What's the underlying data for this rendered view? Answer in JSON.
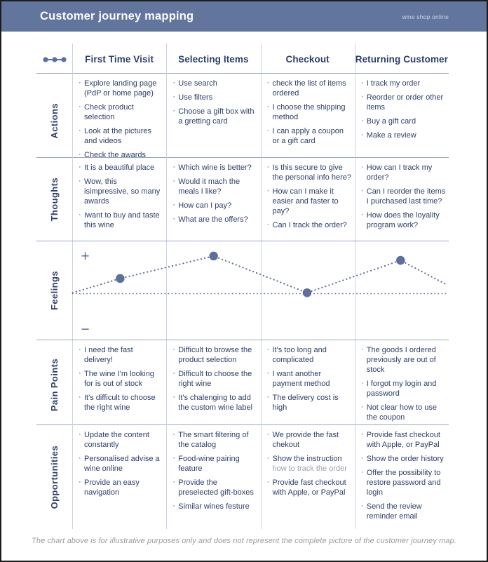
{
  "header": {
    "title": "Customer journey mapping",
    "brand": "wine shop online"
  },
  "icons": {
    "journey_path": "three-dots-connected-by-line"
  },
  "columns": [
    "First Time Visit",
    "Selecting Items",
    "Checkout",
    "Returning Customer"
  ],
  "rows": [
    {
      "label": "Actions",
      "type": "list",
      "cells": [
        [
          "Explore landing page (PdP or home page)",
          "Check product selection",
          "Look at the pictures and videos",
          "Check the awards"
        ],
        [
          "Use search",
          "Use filters",
          "Choose a gift box with a gretting card"
        ],
        [
          "check the list of items ordered",
          "I choose the shipping method",
          "I can apply a coupon or a gift card"
        ],
        [
          "I track my order",
          "Reorder or order other items",
          "Buy a gift card",
          "Make a review"
        ]
      ]
    },
    {
      "label": "Thoughts",
      "type": "list",
      "cells": [
        [
          "It is a beautiful place",
          "Wow, this isimpressive, so many awards",
          "Iwant to buy and taste this wine"
        ],
        [
          "Which wine is better?",
          "Would it mach the meals I like?",
          "How can I pay?",
          "What are the offers?"
        ],
        [
          "Is this secure to give the personal info here?",
          "How can I make it easier and faster to pay?",
          "Can I track the order?"
        ],
        [
          "How can I track my order?",
          "Can I reorder the items I purchased last time?",
          "How does the loyality program work?"
        ]
      ]
    },
    {
      "label": "Feelings",
      "type": "chart"
    },
    {
      "label": "Pain Points",
      "type": "list",
      "cells": [
        [
          "I need the fast delivery!",
          "The wine I'm looking for is out of stock",
          "It's difficult to choose the right wine"
        ],
        [
          "Difficult to browse the product selection",
          "Difficult to choose the right wine",
          "It's chalenging to add the custom wine label"
        ],
        [
          "It's too long and complicated",
          "I want another payment method",
          "The delivery cost is high"
        ],
        [
          "The goods I ordered previously are out of stock",
          "I forgot my login and password",
          "Not clear how to use the coupon"
        ]
      ]
    },
    {
      "label": "Opportunities",
      "type": "list",
      "cells": [
        [
          "Update the content constantly",
          "Personalised advise a wine online",
          "Provide an easy navigation"
        ],
        [
          "The smart filtering of the catalog",
          "Food-wine pairing feature",
          "Provide the preselected gift-boxes",
          "Similar wines festure"
        ],
        [
          "We provide the fast chekout",
          {
            "text": "Show the instruction",
            "muted": "how to track the order"
          },
          "Provide fast checkout with Apple, or PayPal"
        ],
        [
          "Provide fast checkout with Apple, or PayPal",
          "Show the order history",
          "Offer the possibility to restore password and login",
          "Send the review reminder email"
        ]
      ]
    }
  ],
  "chart_data": {
    "type": "line",
    "line_style": "dotted",
    "title": "Feelings",
    "x_categories": [
      "First Time Visit",
      "Selecting Items",
      "Checkout",
      "Returning Customer"
    ],
    "series": [
      {
        "name": "Feelings",
        "values": [
          0.35,
          0.87,
          0.02,
          0.77
        ]
      }
    ],
    "edge_values": {
      "start": 0.02,
      "end": 0.2
    },
    "baseline": 0,
    "ylim": [
      -1,
      1
    ],
    "axis_labels": {
      "positive": "+",
      "negative": "−"
    },
    "legend": "none",
    "grid": "column-dividers-and-dotted-baseline",
    "colors": {
      "line": "#5d6f9a",
      "point": "#5d6f9a"
    }
  },
  "footer": {
    "disclaimer": "The chart above is for illustrative purposes only and does not represent the complete picture of the customer journey map."
  },
  "colors": {
    "header_bg": "#62759c",
    "text": "#2d3e68",
    "grid_vertical": "#ccd3e0",
    "grid_horizontal": "#9aa6c0",
    "muted_text": "#9ba1ad",
    "footer_text": "#9b9b9b"
  }
}
